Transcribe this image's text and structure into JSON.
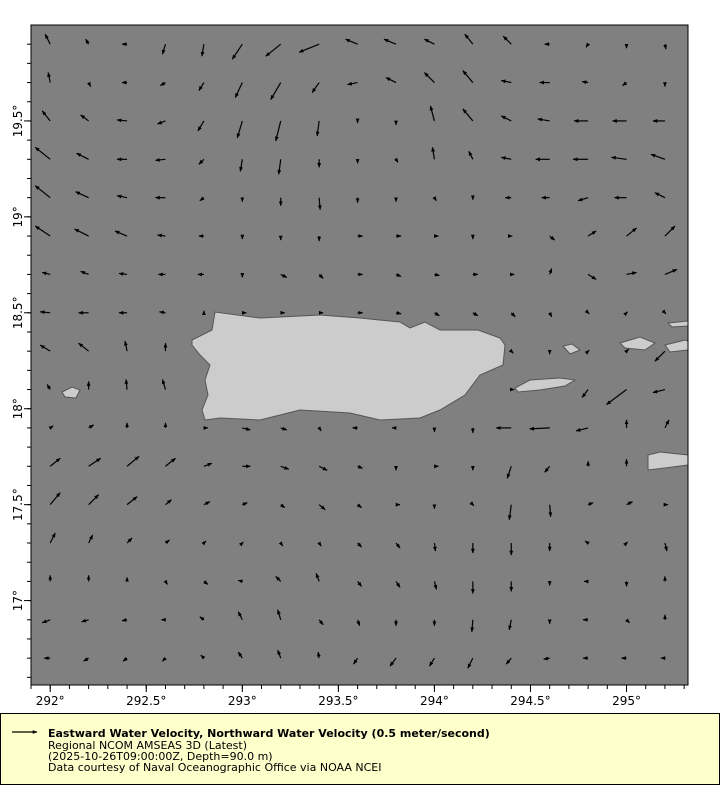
{
  "legend": {
    "title": "Eastward Water Velocity, Northward Water Velocity (0.5 meter/second)",
    "dataset": "Regional NCOM AMSEAS 3D (Latest)",
    "time_depth": "(2025-10-26T09:00:00Z, Depth=90.0 m)",
    "credit": "Data courtesy of Naval Oceanographic Office via NOAA NCEI"
  },
  "colors": {
    "ocean": "#808080",
    "land": "#cccccc",
    "coast": "#555555",
    "arrow": "#000000",
    "legend_bg": "#ffffcc"
  },
  "chart_data": {
    "type": "vector",
    "units": "meter/second",
    "reference_vector": 0.5,
    "xlim": [
      291.9,
      295.32
    ],
    "ylim": [
      16.56,
      20.0
    ],
    "xticks": [
      292,
      292.5,
      293,
      293.5,
      294,
      294.5,
      295
    ],
    "xtick_labels": [
      "292°",
      "292.5°",
      "293°",
      "293.5°",
      "294°",
      "294.5°",
      "295°"
    ],
    "yticks": [
      17,
      17.5,
      18,
      18.5,
      19,
      19.5
    ],
    "ytick_labels": [
      "17°",
      "17.5°",
      "18°",
      "18.5°",
      "19°",
      "19.5°"
    ],
    "lon": [
      292.0,
      292.2,
      292.4,
      292.6,
      292.8,
      293.0,
      293.2,
      293.4,
      293.6,
      293.8,
      294.0,
      294.2,
      294.4,
      294.6,
      294.8,
      295.0,
      295.2
    ],
    "lat": [
      19.9,
      19.7,
      19.5,
      19.3,
      19.1,
      18.9,
      18.7,
      18.5,
      18.3,
      18.1,
      17.9,
      17.7,
      17.5,
      17.3,
      17.1,
      16.9,
      16.7
    ],
    "uv": [
      [
        [
          -0.1,
          0.2
        ],
        [
          -0.06,
          0.1
        ],
        [
          -0.1,
          0
        ],
        [
          -0.06,
          -0.2
        ],
        [
          -0.04,
          -0.24
        ],
        [
          -0.2,
          -0.3
        ],
        [
          -0.3,
          -0.24
        ],
        [
          -0.4,
          -0.16
        ],
        [
          -0.24,
          0.1
        ],
        [
          -0.24,
          0.1
        ],
        [
          -0.2,
          0.1
        ],
        [
          -0.16,
          0.2
        ],
        [
          -0.16,
          0.16
        ],
        [
          -0.1,
          0
        ],
        [
          -0.04,
          -0.06
        ],
        [
          0,
          -0.08
        ],
        [
          0.02,
          -0.1
        ]
      ],
      [
        [
          -0.04,
          0.2
        ],
        [
          0.04,
          -0.08
        ],
        [
          -0.1,
          0
        ],
        [
          -0.1,
          -0.06
        ],
        [
          -0.1,
          -0.16
        ],
        [
          -0.14,
          -0.3
        ],
        [
          -0.2,
          -0.34
        ],
        [
          -0.14,
          -0.2
        ],
        [
          -0.2,
          -0.04
        ],
        [
          -0.2,
          0.1
        ],
        [
          -0.2,
          0.2
        ],
        [
          -0.2,
          0.24
        ],
        [
          -0.2,
          0.04
        ],
        [
          -0.2,
          0
        ],
        [
          -0.12,
          0.02
        ],
        [
          -0.08,
          -0.06
        ],
        [
          0,
          -0.08
        ]
      ],
      [
        [
          -0.16,
          0.2
        ],
        [
          -0.16,
          0.12
        ],
        [
          -0.2,
          0.02
        ],
        [
          -0.16,
          -0.06
        ],
        [
          -0.12,
          -0.2
        ],
        [
          -0.1,
          -0.34
        ],
        [
          -0.1,
          -0.4
        ],
        [
          -0.04,
          -0.3
        ],
        [
          0,
          -0.04
        ],
        [
          0,
          -0.08
        ],
        [
          -0.08,
          0.3
        ],
        [
          -0.2,
          0.24
        ],
        [
          -0.2,
          0.1
        ],
        [
          -0.24,
          0.04
        ],
        [
          -0.28,
          0
        ],
        [
          -0.28,
          0
        ],
        [
          -0.24,
          0
        ]
      ],
      [
        [
          -0.3,
          0.24
        ],
        [
          -0.24,
          0.12
        ],
        [
          -0.2,
          0
        ],
        [
          -0.2,
          -0.02
        ],
        [
          -0.1,
          -0.1
        ],
        [
          -0.04,
          -0.24
        ],
        [
          -0.04,
          -0.3
        ],
        [
          0,
          -0.16
        ],
        [
          0,
          -0.08
        ],
        [
          0.04,
          -0.06
        ],
        [
          -0.04,
          0.24
        ],
        [
          -0.08,
          0.16
        ],
        [
          -0.2,
          0.04
        ],
        [
          -0.28,
          0
        ],
        [
          -0.3,
          0
        ],
        [
          -0.3,
          0.04
        ],
        [
          -0.28,
          0.1
        ]
      ],
      [
        [
          -0.3,
          0.24
        ],
        [
          -0.26,
          0.12
        ],
        [
          -0.2,
          0.04
        ],
        [
          -0.2,
          0
        ],
        [
          -0.08,
          -0.06
        ],
        [
          0,
          -0.08
        ],
        [
          0,
          -0.16
        ],
        [
          0.02,
          -0.24
        ],
        [
          0,
          -0.1
        ],
        [
          0,
          -0.08
        ],
        [
          0.04,
          -0.06
        ],
        [
          0,
          -0.04
        ],
        [
          -0.12,
          0
        ],
        [
          -0.16,
          0
        ],
        [
          -0.2,
          -0.06
        ],
        [
          -0.24,
          0
        ],
        [
          -0.2,
          0.1
        ]
      ],
      [
        [
          -0.3,
          0.2
        ],
        [
          -0.28,
          0.14
        ],
        [
          -0.24,
          0.1
        ],
        [
          -0.16,
          0.02
        ],
        [
          -0.1,
          0
        ],
        [
          0,
          -0.06
        ],
        [
          0,
          -0.08
        ],
        [
          0,
          -0.1
        ],
        [
          0.1,
          0
        ],
        [
          0.1,
          0
        ],
        [
          0.08,
          0
        ],
        [
          0,
          -0.06
        ],
        [
          0.02,
          0
        ],
        [
          0.1,
          -0.08
        ],
        [
          0.16,
          0.1
        ],
        [
          0.2,
          0.16
        ],
        [
          0.2,
          0.2
        ]
      ],
      [
        [
          -0.16,
          0.04
        ],
        [
          -0.16,
          0.06
        ],
        [
          -0.16,
          0.02
        ],
        [
          -0.14,
          0
        ],
        [
          -0.12,
          0
        ],
        [
          0,
          -0.06
        ],
        [
          0.12,
          -0.06
        ],
        [
          0.08,
          -0.08
        ],
        [
          0.1,
          0
        ],
        [
          0.1,
          -0.04
        ],
        [
          0.1,
          -0.02
        ],
        [
          0.1,
          0
        ],
        [
          0.06,
          0
        ],
        [
          0.04,
          0.12
        ],
        [
          0.16,
          -0.1
        ],
        [
          0.2,
          0.04
        ],
        [
          0.24,
          0.1
        ]
      ],
      [
        [
          -0.2,
          0.02
        ],
        [
          -0.2,
          0
        ],
        [
          -0.16,
          0
        ],
        [
          -0.12,
          0.02
        ],
        [
          0,
          0.04
        ],
        [
          0.08,
          0
        ],
        [
          0.08,
          0
        ],
        [
          0.08,
          0
        ],
        [
          0.1,
          0
        ],
        [
          0.1,
          -0.02
        ],
        [
          0.1,
          -0.06
        ],
        [
          0.1,
          -0.06
        ],
        [
          0.08,
          -0.08
        ],
        [
          0.04,
          -0.08
        ],
        [
          0.02,
          -0.02
        ],
        [
          0.02,
          0.02
        ],
        [
          0.02,
          -0.02
        ]
      ],
      [
        [
          -0.2,
          0.12
        ],
        [
          -0.2,
          0.16
        ],
        [
          -0.04,
          0.2
        ],
        [
          0,
          0.16
        ],
        null,
        null,
        null,
        null,
        null,
        null,
        null,
        null,
        [
          0.04,
          -0.04
        ],
        [
          0,
          -0.06
        ],
        [
          0.02,
          0.02
        ],
        [
          0.04,
          0.04
        ],
        [
          -0.2,
          -0.2
        ]
      ],
      [
        [
          -0.06,
          0.1
        ],
        [
          0,
          0.16
        ],
        [
          -0.02,
          0.2
        ],
        [
          -0.06,
          0.2
        ],
        null,
        null,
        null,
        null,
        null,
        null,
        null,
        null,
        [
          0.06,
          0
        ],
        null,
        [
          -0.12,
          -0.16
        ],
        [
          -0.4,
          -0.3
        ],
        [
          -0.24,
          -0.06
        ]
      ],
      [
        [
          0.06,
          0.04
        ],
        [
          0.1,
          0.06
        ],
        [
          0,
          0.1
        ],
        [
          0,
          0.1
        ],
        [
          0.08,
          0
        ],
        [
          0.16,
          -0.04
        ],
        [
          0.12,
          -0.04
        ],
        [
          0.04,
          -0.06
        ],
        [
          -0.1,
          0
        ],
        [
          -0.08,
          0
        ],
        [
          0,
          -0.08
        ],
        [
          0,
          -0.1
        ],
        [
          -0.3,
          0
        ],
        [
          -0.4,
          -0.02
        ],
        [
          -0.24,
          -0.06
        ],
        [
          0,
          0.16
        ],
        [
          0.08,
          0.16
        ]
      ],
      [
        [
          0.2,
          0.16
        ],
        [
          0.24,
          0.16
        ],
        [
          0.24,
          0.2
        ],
        [
          0.2,
          0.16
        ],
        [
          0.16,
          0.06
        ],
        [
          0.16,
          0
        ],
        [
          0.16,
          -0.06
        ],
        [
          0.16,
          -0.08
        ],
        [
          0.1,
          -0.04
        ],
        [
          0,
          -0.08
        ],
        [
          0.08,
          0
        ],
        [
          0,
          -0.08
        ],
        [
          -0.08,
          -0.24
        ],
        [
          -0.1,
          -0.12
        ],
        [
          0,
          0.1
        ],
        [
          0,
          0.14
        ],
        null
      ],
      [
        [
          0.2,
          0.24
        ],
        [
          0.2,
          0.2
        ],
        [
          0.2,
          0.16
        ],
        [
          0.12,
          0.1
        ],
        [
          0.12,
          0.06
        ],
        [
          0.1,
          0.04
        ],
        [
          0.08,
          -0.06
        ],
        [
          0.12,
          -0.1
        ],
        [
          0.08,
          -0.06
        ],
        [
          0.08,
          0
        ],
        [
          0,
          -0.08
        ],
        [
          0.02,
          -0.02
        ],
        [
          -0.04,
          -0.3
        ],
        [
          0.02,
          -0.24
        ],
        [
          0.1,
          0.04
        ],
        [
          0.12,
          0.06
        ],
        [
          0.06,
          0
        ]
      ],
      [
        [
          0.1,
          0.2
        ],
        [
          0.08,
          0.16
        ],
        [
          0.1,
          0.1
        ],
        [
          0.08,
          0.06
        ],
        [
          0.04,
          0.04
        ],
        [
          0.02,
          0.02
        ],
        [
          0.04,
          -0.06
        ],
        [
          0.04,
          -0.06
        ],
        [
          0.08,
          -0.08
        ],
        [
          0.08,
          -0.1
        ],
        [
          0.02,
          -0.16
        ],
        [
          0,
          -0.2
        ],
        [
          0,
          -0.24
        ],
        [
          0,
          -0.16
        ],
        [
          -0.06,
          0.04
        ],
        [
          0.02,
          0.02
        ],
        [
          0.04,
          -0.16
        ]
      ],
      [
        [
          0,
          0.12
        ],
        [
          0,
          0.12
        ],
        [
          0,
          0.08
        ],
        [
          0.04,
          -0.06
        ],
        [
          0.08,
          -0.06
        ],
        [
          -0.08,
          0.02
        ],
        [
          -0.1,
          0.1
        ],
        [
          -0.06,
          0.16
        ],
        [
          0.08,
          -0.1
        ],
        [
          0.08,
          -0.12
        ],
        [
          0.04,
          -0.16
        ],
        [
          0,
          -0.24
        ],
        [
          0,
          -0.2
        ],
        [
          0,
          -0.08
        ],
        [
          -0.08,
          0
        ],
        [
          0,
          -0.1
        ],
        [
          0,
          0.1
        ]
      ],
      [
        [
          -0.16,
          -0.06
        ],
        [
          -0.14,
          -0.04
        ],
        [
          -0.1,
          -0.02
        ],
        [
          -0.08,
          0
        ],
        [
          -0.08,
          0.06
        ],
        [
          -0.08,
          0.16
        ],
        [
          -0.06,
          0.2
        ],
        [
          0.08,
          -0.1
        ],
        [
          0.04,
          -0.12
        ],
        [
          0,
          -0.12
        ],
        [
          0,
          -0.12
        ],
        [
          -0.02,
          -0.24
        ],
        [
          -0.04,
          -0.2
        ],
        [
          0,
          -0.08
        ],
        [
          -0.1,
          0
        ],
        [
          0.06,
          -0.06
        ],
        [
          0,
          0.1
        ]
      ],
      [
        [
          -0.12,
          0
        ],
        [
          -0.1,
          -0.06
        ],
        [
          -0.08,
          -0.06
        ],
        [
          -0.06,
          -0.06
        ],
        [
          -0.06,
          0.06
        ],
        [
          -0.08,
          0.12
        ],
        [
          -0.06,
          0.16
        ],
        [
          -0.02,
          0.12
        ],
        [
          -0.08,
          -0.12
        ],
        [
          -0.12,
          -0.16
        ],
        [
          -0.1,
          -0.16
        ],
        [
          -0.1,
          -0.2
        ],
        [
          -0.1,
          -0.12
        ],
        [
          -0.12,
          -0.02
        ],
        [
          -0.1,
          0
        ],
        [
          -0.1,
          0
        ],
        [
          -0.08,
          0
        ]
      ]
    ]
  }
}
